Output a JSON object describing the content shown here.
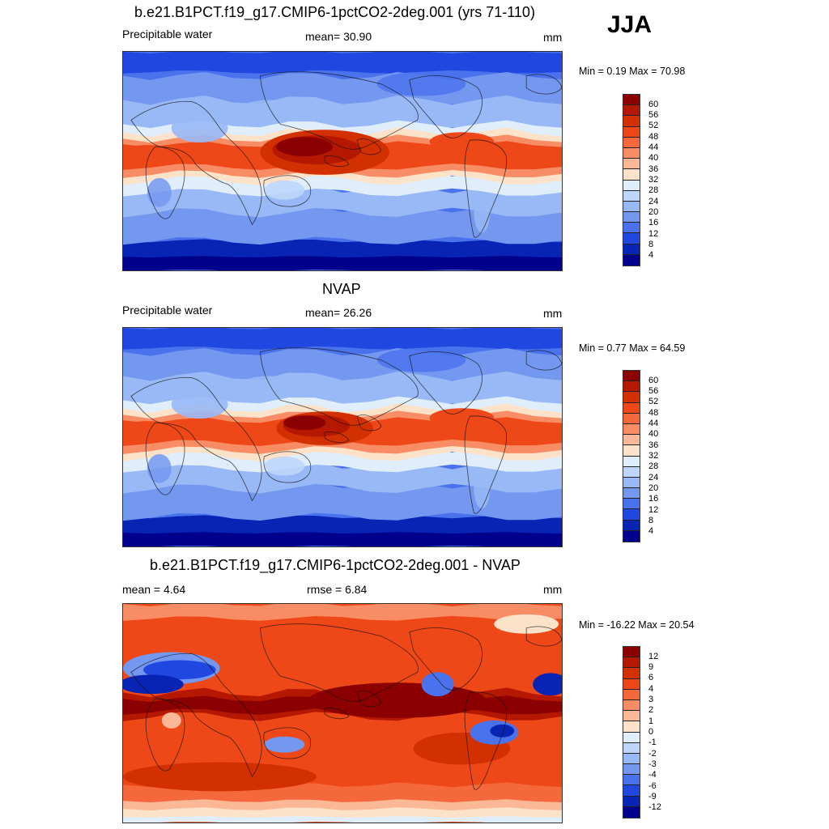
{
  "season": "JJA",
  "panels": [
    {
      "title": "b.e21.B1PCT.f19_g17.CMIP6-1pctCO2-2deg.001 (yrs 71-110)",
      "left_label": "Precipitable water",
      "center_label": "mean=  30.90",
      "units": "mm",
      "minmax": "Min =   0.19 Max =  70.98",
      "field": "model"
    },
    {
      "title": "NVAP",
      "left_label": "Precipitable water",
      "center_label": "mean=  26.26",
      "units": "mm",
      "minmax": "Min =   0.77 Max =  64.59",
      "field": "obs"
    },
    {
      "title": "b.e21.B1PCT.f19_g17.CMIP6-1pctCO2-2deg.001 - NVAP",
      "left_label": "mean =   4.64",
      "center_label": "rmse =   6.84",
      "units": "mm",
      "minmax": "Min = -16.22 Max =  20.54",
      "field": "diff"
    }
  ],
  "colorbars": {
    "abs": {
      "labels": [
        "60",
        "56",
        "52",
        "48",
        "44",
        "40",
        "36",
        "32",
        "28",
        "24",
        "20",
        "16",
        "12",
        "8",
        "4"
      ],
      "colors": [
        "#8b0000",
        "#b41800",
        "#d23000",
        "#ee4818",
        "#f4683c",
        "#f88c64",
        "#fbb896",
        "#fde2ca",
        "#e0eefc",
        "#bed6fa",
        "#98b8f6",
        "#7498f0",
        "#4a72ec",
        "#2048e0",
        "#0824b4",
        "#00008c"
      ]
    },
    "diff": {
      "labels": [
        "12",
        "9",
        "6",
        "4",
        "3",
        "2",
        "1",
        "0",
        "-1",
        "-2",
        "-3",
        "-4",
        "-6",
        "-9",
        "-12"
      ],
      "colors": [
        "#8b0000",
        "#b41800",
        "#d23000",
        "#ee4818",
        "#f4683c",
        "#f88c64",
        "#fbb896",
        "#fde2ca",
        "#e0eefc",
        "#bed6fa",
        "#98b8f6",
        "#7498f0",
        "#4a72ec",
        "#2048e0",
        "#0824b4",
        "#00008c"
      ]
    }
  }
}
